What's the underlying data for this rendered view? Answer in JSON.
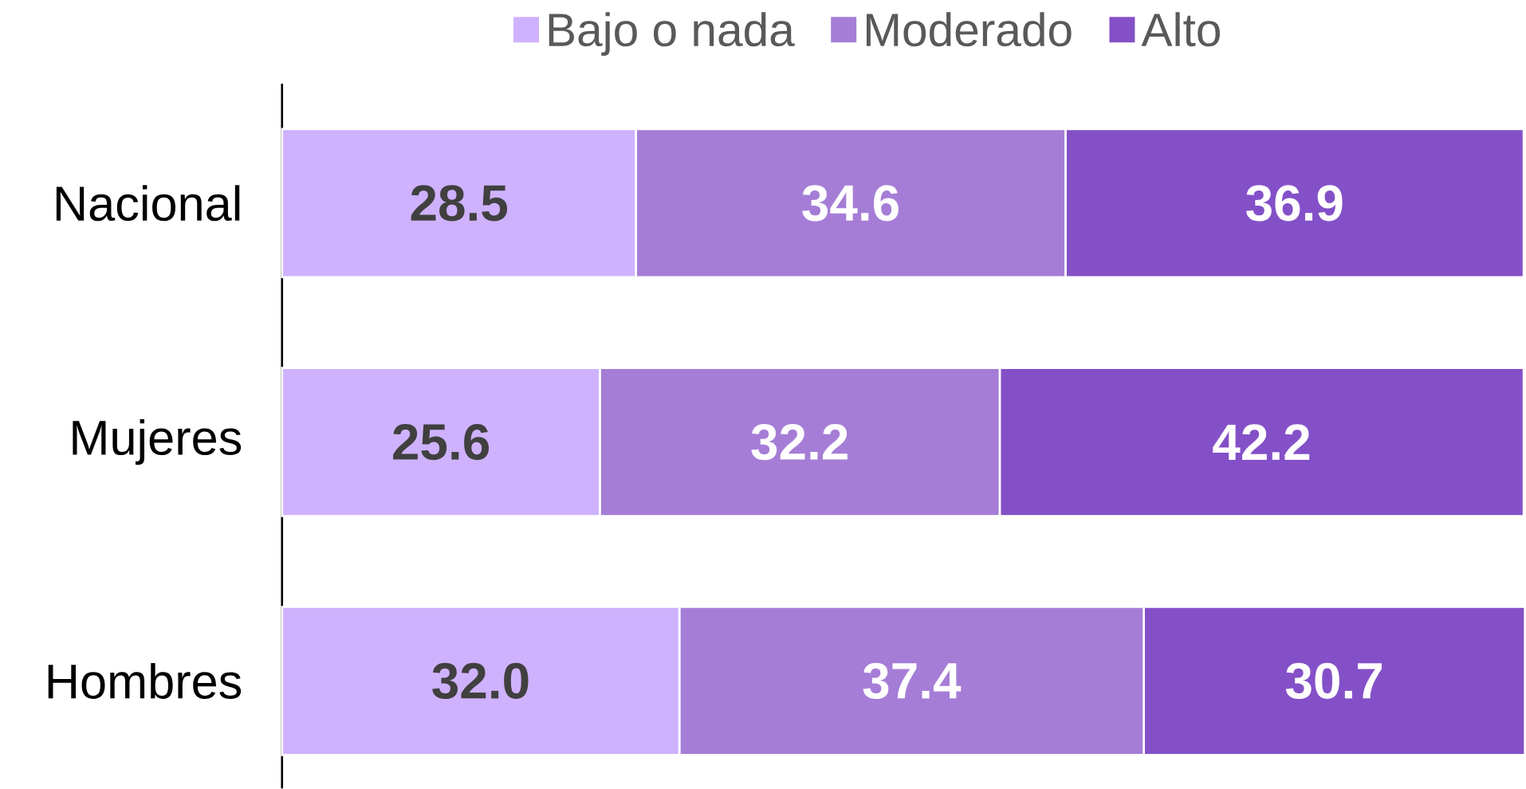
{
  "chart_data": {
    "type": "bar",
    "orientation": "horizontal",
    "stacked": true,
    "categories": [
      "Nacional",
      "Mujeres",
      "Hombres"
    ],
    "series": [
      {
        "name": "Bajo o nada",
        "color": "#cfb2fd",
        "values": [
          28.5,
          25.6,
          32.0
        ],
        "value_labels": [
          "28.5",
          "25.6",
          "32.0"
        ]
      },
      {
        "name": "Moderado",
        "color": "#a57dd6",
        "values": [
          34.6,
          32.2,
          37.4
        ],
        "value_labels": [
          "34.6",
          "32.2",
          "37.4"
        ]
      },
      {
        "name": "Alto",
        "color": "#8450c8",
        "values": [
          36.9,
          42.2,
          30.7
        ],
        "value_labels": [
          "36.9",
          "42.2",
          "30.7"
        ]
      }
    ],
    "data_labels": true,
    "legend": "top"
  }
}
